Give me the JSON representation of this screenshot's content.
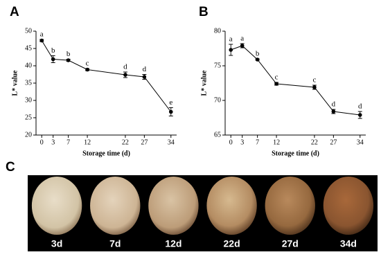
{
  "chart_data": [
    {
      "type": "line",
      "panel_label": "A",
      "x_label": "Storage time (d)",
      "y_label": "L* value",
      "x": [
        0,
        3,
        7,
        12,
        22,
        27,
        34
      ],
      "series": [
        {
          "color": "#000000",
          "values": [
            47.3,
            41.9,
            41.6,
            38.9,
            37.4,
            36.8,
            26.7
          ],
          "errors": [
            0.3,
            1.0,
            0.3,
            0.3,
            0.8,
            0.7,
            1.2
          ],
          "point_labels": [
            "a",
            "b",
            "b",
            "c",
            "d",
            "d",
            "e"
          ]
        }
      ],
      "xlim": [
        -1.5,
        35.5
      ],
      "xticks": [
        0,
        3,
        7,
        12,
        22,
        27,
        34
      ],
      "ylim": [
        20,
        50
      ],
      "yticks": [
        20,
        25,
        30,
        35,
        40,
        45,
        50
      ]
    },
    {
      "type": "line",
      "panel_label": "B",
      "x_label": "Storage time (d)",
      "y_label": "L* value",
      "x": [
        0,
        3,
        7,
        12,
        22,
        27,
        34
      ],
      "series": [
        {
          "color": "#000000",
          "values": [
            77.3,
            77.9,
            75.9,
            72.4,
            71.9,
            68.4,
            67.9
          ],
          "errors": [
            0.8,
            0.3,
            0.1,
            0.2,
            0.3,
            0.3,
            0.5
          ],
          "point_labels": [
            "a",
            "a",
            "b",
            "c",
            "c",
            "d",
            "d"
          ]
        }
      ],
      "xlim": [
        -1.5,
        35.5
      ],
      "xticks": [
        0,
        3,
        7,
        12,
        22,
        27,
        34
      ],
      "ylim": [
        65,
        80
      ],
      "yticks": [
        65,
        70,
        75,
        80
      ]
    }
  ],
  "photo_panel": {
    "panel_label": "C",
    "captions": [
      "3d",
      "7d",
      "12d",
      "22d",
      "27d",
      "34d"
    ]
  }
}
